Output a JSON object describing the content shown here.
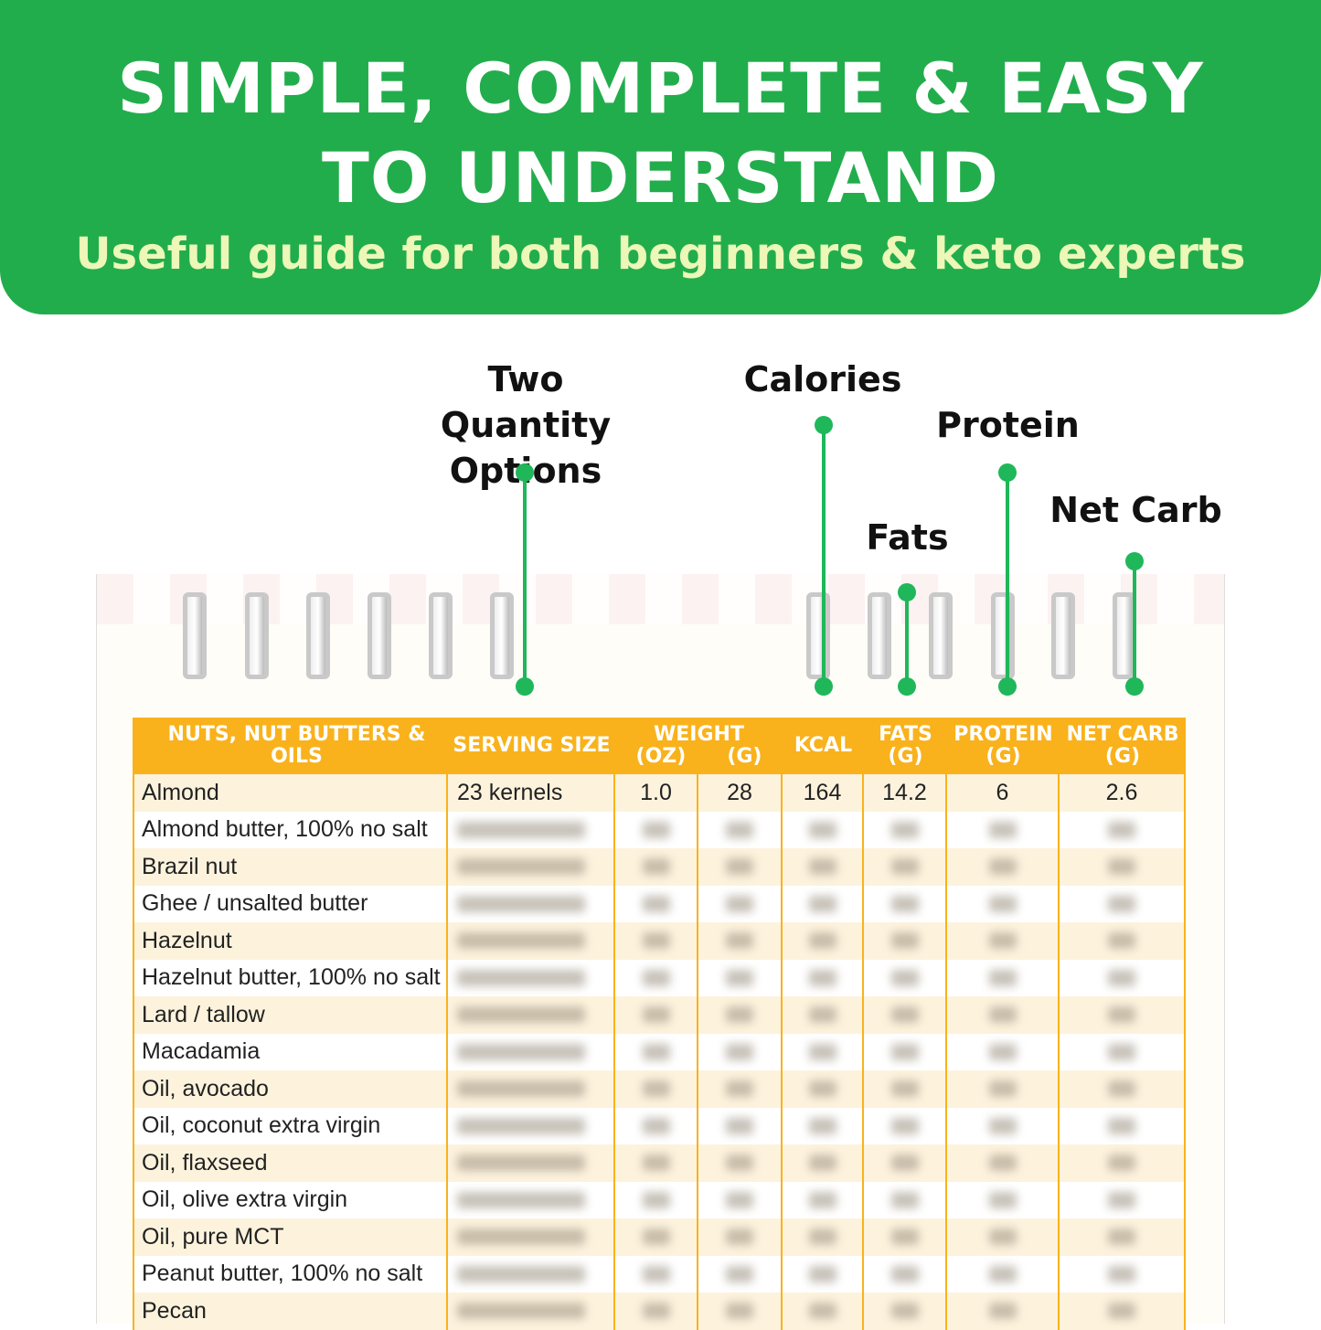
{
  "banner": {
    "title_line1": "SIMPLE, COMPLETE & EASY",
    "title_line2": "TO UNDERSTAND",
    "subtitle": "Useful guide for both beginners & keto experts"
  },
  "callouts": {
    "quantity": "Two Quantity Options",
    "calories": "Calories",
    "fats": "Fats",
    "protein": "Protein",
    "net_carb": "Net Carb"
  },
  "colors": {
    "brand_green": "#22ad4c",
    "header_orange": "#f9b21c"
  },
  "table": {
    "headers": [
      "NUTS, NUT BUTTERS & OILS",
      "SERVING SIZE",
      "WEIGHT",
      "(OZ)",
      "(G)",
      "KCAL",
      "FATS (G)",
      "PROTEIN (G)",
      "NET CARB (G)"
    ],
    "first_row": [
      "Almond",
      "23 kernels",
      "1.0",
      "28",
      "164",
      "14.2",
      "6",
      "2.6"
    ],
    "foods": [
      "Almond butter, 100% no salt",
      "Brazil nut",
      "Ghee / unsalted butter",
      "Hazelnut",
      "Hazelnut butter, 100% no salt",
      "Lard / tallow",
      "Macadamia",
      "Oil, avocado",
      "Oil, coconut extra virgin",
      "Oil, flaxseed",
      "Oil, olive extra virgin",
      "Oil, pure MCT",
      "Peanut butter, 100% no salt",
      "Pecan"
    ]
  }
}
